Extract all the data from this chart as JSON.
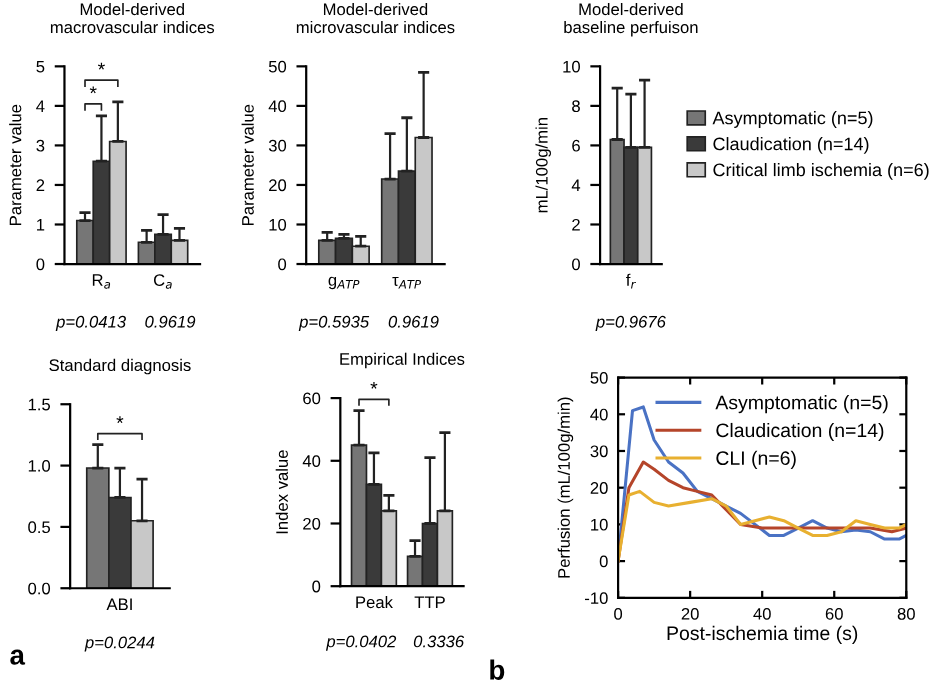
{
  "chart_data": [
    {
      "type": "bar",
      "title": "Model-derived\nmacrovascular indices",
      "ylabel": "Parameter value",
      "categories": [
        "R$_{a}$",
        "C$_{a}$"
      ],
      "ylim": [
        0,
        5
      ],
      "yticks": [
        0,
        1,
        2,
        3,
        4,
        5
      ],
      "grid": false,
      "legend": false,
      "series": [
        {
          "color": "#767676",
          "values": [
            1.1,
            0.55
          ],
          "errors": [
            [
              1.1,
              1.3
            ],
            [
              0.55,
              0.85
            ]
          ]
        },
        {
          "color": "#3a3a3a",
          "values": [
            2.6,
            0.75
          ],
          "errors": [
            [
              2.6,
              3.75
            ],
            [
              0.75,
              1.25
            ]
          ]
        },
        {
          "color": "#c8c8c8",
          "values": [
            3.1,
            0.6
          ],
          "errors": [
            [
              3.1,
              4.1
            ],
            [
              0.6,
              0.9
            ]
          ]
        }
      ],
      "annotations": [
        "p=0.0413",
        "0.9619",
        "*",
        "*"
      ]
    },
    {
      "type": "bar",
      "title": "Model-derived\nmicrovascular indices",
      "ylabel": "Parameter value",
      "categories": [
        "g$_{ATP}$",
        "τ$_{ATP}$"
      ],
      "ylim": [
        0,
        50
      ],
      "yticks": [
        0,
        10,
        20,
        30,
        40,
        50
      ],
      "grid": false,
      "legend": false,
      "series": [
        {
          "color": "#767676",
          "values": [
            6,
            21.5
          ],
          "errors": [
            [
              6,
              8
            ],
            [
              21.5,
              33
            ]
          ]
        },
        {
          "color": "#3a3a3a",
          "values": [
            6.5,
            23.5
          ],
          "errors": [
            [
              6.5,
              7.5
            ],
            [
              23.5,
              37
            ]
          ]
        },
        {
          "color": "#c8c8c8",
          "values": [
            4.5,
            32
          ],
          "errors": [
            [
              4.5,
              7
            ],
            [
              32,
              48.5
            ]
          ]
        }
      ],
      "annotations": [
        "p=0.5935",
        "0.9619",
        "a"
      ]
    },
    {
      "type": "bar",
      "title": "Model-derived\nbaseline perfuison",
      "ylabel": "mL/100g/min",
      "categories": [
        "f$_{r}$"
      ],
      "ylim": [
        0,
        10
      ],
      "yticks": [
        0,
        2,
        4,
        6,
        8,
        10
      ],
      "grid": false,
      "legend": "right",
      "series": [
        {
          "name": "Asymptomatic (n=5)",
          "color": "#767676",
          "values": [
            6.3
          ],
          "errors": [
            [
              6.3,
              8.9
            ]
          ]
        },
        {
          "name": "Claudication (n=14)",
          "color": "#3a3a3a",
          "values": [
            5.9
          ],
          "errors": [
            [
              5.9,
              8.6
            ]
          ]
        },
        {
          "name": "Critical limb ischemia (n=6)",
          "color": "#c8c8c8",
          "values": [
            5.9
          ],
          "errors": [
            [
              5.9,
              9.3
            ]
          ]
        }
      ],
      "annotations": [
        "p=0.9676"
      ]
    },
    {
      "type": "bar",
      "title": "Standard diagnosis",
      "categories": [
        "ABI"
      ],
      "ylim": [
        0,
        1.5
      ],
      "yticks": [
        {
          "value": 0,
          "label": "0.0"
        },
        0.5,
        {
          "value": 1,
          "label": "1.0"
        },
        1.5
      ],
      "grid": false,
      "legend": false,
      "series": [
        {
          "color": "#767676",
          "values": [
            0.98
          ],
          "errors": [
            [
              0.98,
              1.17
            ]
          ]
        },
        {
          "color": "#3a3a3a",
          "values": [
            0.74
          ],
          "errors": [
            [
              0.74,
              0.98
            ]
          ]
        },
        {
          "color": "#c8c8c8",
          "values": [
            0.55
          ],
          "errors": [
            [
              0.55,
              0.89
            ]
          ]
        }
      ],
      "annotations": [
        "p=0.0244",
        "*"
      ]
    },
    {
      "type": "bar",
      "title": "Empirical Indices",
      "ylabel": "Index value",
      "categories": [
        "Peak",
        "TTP"
      ],
      "ylim": [
        0,
        60
      ],
      "yticks": [
        0,
        20,
        40,
        60
      ],
      "grid": false,
      "legend": false,
      "series": [
        {
          "color": "#767676",
          "values": [
            45,
            9.5
          ],
          "errors": [
            [
              45,
              56
            ],
            [
              9.5,
              14.5
            ]
          ]
        },
        {
          "color": "#3a3a3a",
          "values": [
            32.5,
            20
          ],
          "errors": [
            [
              32.5,
              42.5
            ],
            [
              20,
              41
            ]
          ]
        },
        {
          "color": "#c8c8c8",
          "values": [
            24,
            24
          ],
          "errors": [
            [
              24,
              29
            ],
            [
              24,
              49
            ]
          ]
        }
      ],
      "annotations": [
        "p=0.0402",
        "0.3336",
        "*"
      ]
    },
    {
      "type": "line",
      "xlabel": "Post-ischemia time (s)",
      "ylabel": "Perfusion (mL/100g/min)",
      "xlim": [
        0,
        80
      ],
      "ylim": [
        -10,
        50
      ],
      "xticks": [
        0,
        20,
        40,
        60,
        80
      ],
      "yticks": [
        -10,
        0,
        10,
        20,
        30,
        40,
        50
      ],
      "grid": false,
      "legend": "top right",
      "marker": "none",
      "line_style": "solid",
      "series": [
        {
          "name": "Asymptomatic (n=5)",
          "color": "#4a72c4",
          "x": [
            0,
            4,
            7,
            10,
            14,
            18,
            22,
            26,
            30,
            34,
            38,
            42,
            46,
            50,
            54,
            58,
            62,
            66,
            70,
            74,
            78,
            80
          ],
          "values": [
            0,
            41,
            42,
            33,
            27,
            24,
            19,
            17,
            15,
            13,
            10,
            7,
            7,
            9,
            11,
            9,
            8,
            8.5,
            8,
            6,
            6,
            7
          ]
        },
        {
          "name": "Claudication (n=14)",
          "color": "#b5452a",
          "x": [
            0,
            3,
            7,
            10,
            14,
            18,
            22,
            26,
            30,
            34,
            40,
            50,
            60,
            70,
            76,
            80
          ],
          "values": [
            0,
            20,
            27,
            25,
            22,
            20,
            19,
            18,
            14,
            10,
            9,
            9,
            9,
            9,
            8,
            9
          ]
        },
        {
          "name": "CLI (n=6)",
          "color": "#e8b030",
          "x": [
            0,
            3,
            6,
            10,
            14,
            20,
            26,
            30,
            34,
            38,
            42,
            46,
            50,
            54,
            58,
            62,
            66,
            70,
            74,
            78,
            80
          ],
          "values": [
            0,
            18,
            19,
            16,
            15,
            16,
            17,
            15,
            10,
            11,
            12,
            11,
            9,
            7,
            7,
            8,
            11,
            10,
            9,
            9,
            10
          ]
        }
      ],
      "annotations": [
        "b"
      ]
    }
  ]
}
